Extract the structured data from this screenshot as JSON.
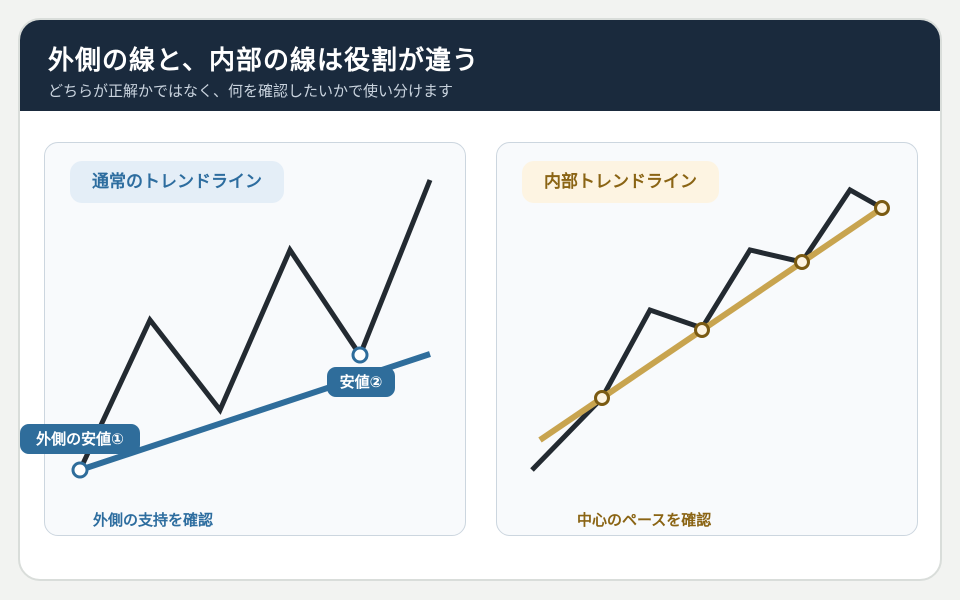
{
  "header": {
    "title": "外側の線と、内部の線は役割が違う",
    "subtitle": "どちらが正解かではなく、何を確認したいかで使い分けます"
  },
  "left_panel": {
    "pill_label": "通常のトレンドライン",
    "caption": "外側の支持を確認",
    "low1_label": "外側の安値①",
    "low2_label": "安値②"
  },
  "right_panel": {
    "pill_label": "内部トレンドライン",
    "caption": "中心のペースを確認"
  },
  "colors": {
    "header_bg": "#1a2a3d",
    "price_line": "#232a31",
    "outer_trendline": "#2f6d9b",
    "inner_trendline": "#c8a44f",
    "inner_marker": "#7a5a12"
  }
}
